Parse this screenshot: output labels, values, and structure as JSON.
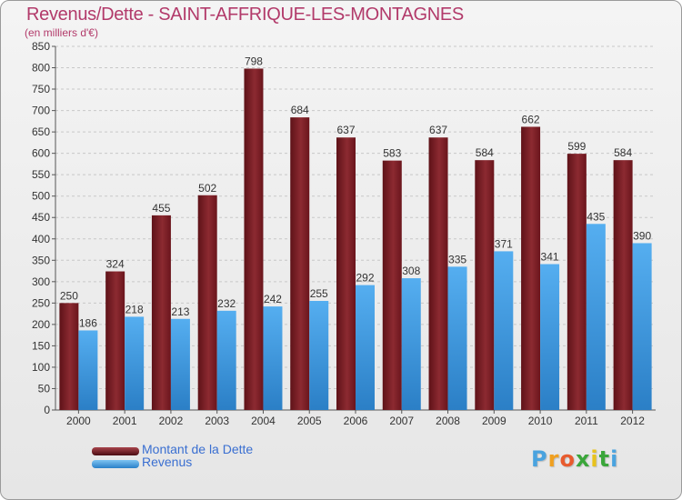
{
  "title": "Revenus/Dette - SAINT-AFFRIQUE-LES-MONTAGNES",
  "subtitle": "(en milliers d'€)",
  "logo": {
    "letters": [
      "P",
      "r",
      "o",
      "x",
      "i",
      "t",
      "i"
    ],
    "colors": [
      "#4aa3df",
      "#f0a020",
      "#e85b2e",
      "#3aa63a",
      "#e8c21d",
      "#3aa63a",
      "#4aa3df"
    ]
  },
  "colors": {
    "dette": "#7a1f26",
    "revenus": "#3f9be0",
    "title": "#b23a6a",
    "legend_text": "#3a6fd1"
  },
  "chart_data": {
    "type": "bar",
    "title": "Revenus/Dette - SAINT-AFFRIQUE-LES-MONTAGNES",
    "subtitle": "(en milliers d'€)",
    "categories": [
      "2000",
      "2001",
      "2002",
      "2003",
      "2004",
      "2005",
      "2006",
      "2007",
      "2008",
      "2009",
      "2010",
      "2011",
      "2012"
    ],
    "series": [
      {
        "name": "Montant de la Dette",
        "values": [
          250,
          324,
          455,
          502,
          798,
          684,
          637,
          583,
          637,
          584,
          662,
          599,
          584
        ]
      },
      {
        "name": "Revenus",
        "values": [
          186,
          218,
          213,
          232,
          242,
          255,
          292,
          308,
          335,
          371,
          341,
          435,
          390
        ]
      }
    ],
    "ylim": [
      0,
      850
    ],
    "ytick_step": 50,
    "grid": true,
    "legend": "bottom-left"
  }
}
